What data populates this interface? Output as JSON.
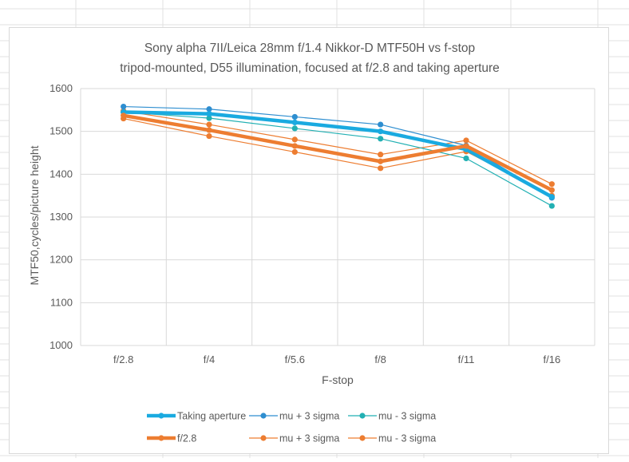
{
  "colors": {
    "taking": "#1AAAE0",
    "taking_plus": "#2E8ED0",
    "taking_minus": "#22B0B3",
    "f28": "#ED7D31",
    "gridline": "#d9d9d9",
    "text": "#595959"
  },
  "chart_data": {
    "type": "line",
    "title": "Sony alpha 7II/Leica 28mm f/1.4 Nikkor-D MTF50H vs f-stop",
    "subtitle": "tripod-mounted, D55 illumination, focused at f/2.8 and taking aperture",
    "xlabel": "F-stop",
    "ylabel": "MTF50,cycles/picture height",
    "categories": [
      "f/2.8",
      "f/4",
      "f/5.6",
      "f/8",
      "f/11",
      "f/16"
    ],
    "ylim": [
      1000,
      1600
    ],
    "yticks": [
      "1000",
      "1100",
      "1200",
      "1300",
      "1400",
      "1500",
      "1600"
    ],
    "grid": true,
    "legend_position": "bottom",
    "series": [
      {
        "name": "Taking aperture",
        "color": "#1AAAE0",
        "weight": "thick",
        "values": [
          1545,
          1541,
          1521,
          1500,
          1458,
          1347
        ]
      },
      {
        "name": "mu +  3 sigma",
        "color": "#2E8ED0",
        "weight": "thin",
        "values": [
          1558,
          1552,
          1534,
          1516,
          1467,
          1345
        ]
      },
      {
        "name": "mu -  3 sigma",
        "color": "#22B0B3",
        "weight": "thin",
        "values": [
          1545,
          1531,
          1507,
          1483,
          1437,
          1326
        ]
      },
      {
        "name": "f/2.8",
        "color": "#ED7D31",
        "weight": "thick",
        "values": [
          1537,
          1503,
          1466,
          1430,
          1466,
          1363
        ]
      },
      {
        "name": "mu +  3 sigma",
        "color": "#ED7D31",
        "weight": "thin",
        "values": [
          1548,
          1516,
          1481,
          1446,
          1479,
          1377
        ]
      },
      {
        "name": "mu -  3 sigma",
        "color": "#ED7D31",
        "weight": "thin",
        "values": [
          1530,
          1489,
          1452,
          1414,
          1453,
          1350
        ]
      }
    ]
  }
}
